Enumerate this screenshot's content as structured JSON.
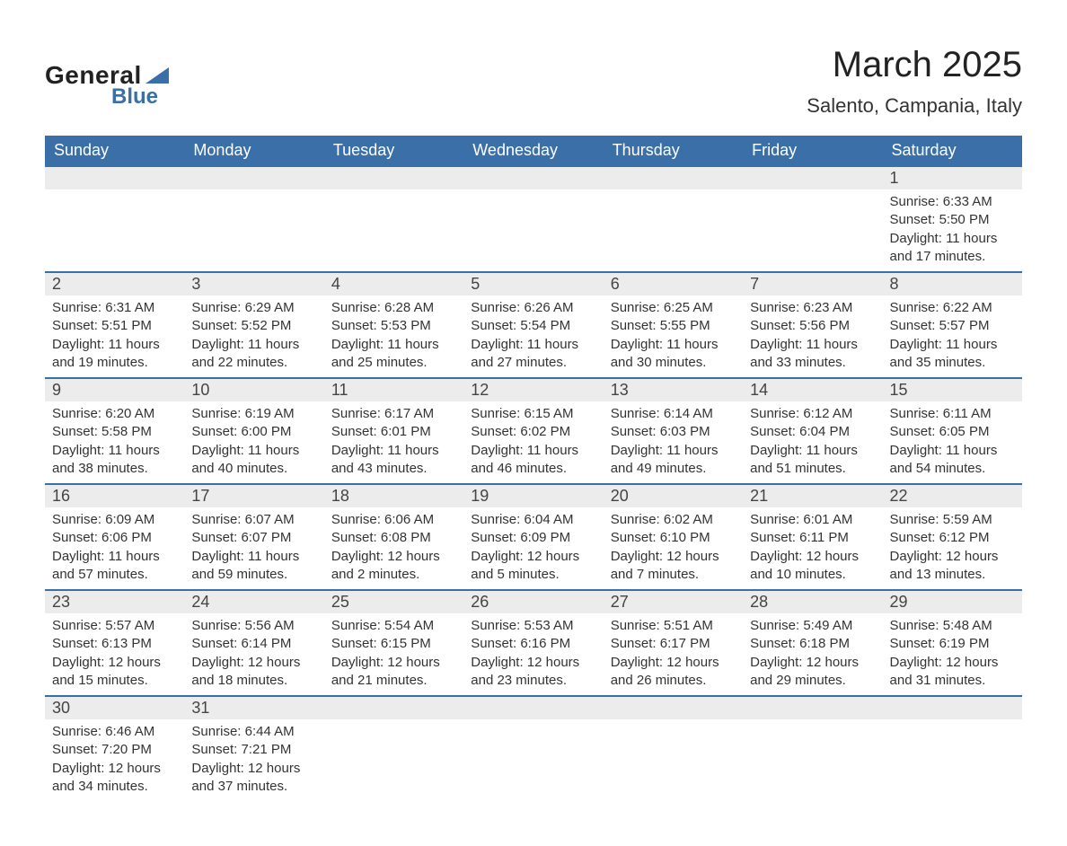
{
  "logo": {
    "general": "General",
    "blue": "Blue",
    "sail_color": "#3a6fa8"
  },
  "title": "March 2025",
  "location": "Salento, Campania, Italy",
  "colors": {
    "header_bg": "#3a6fa8",
    "header_text": "#ffffff",
    "daynum_bg": "#ececec",
    "row_border": "#3a6fa8",
    "body_text": "#333333"
  },
  "typography": {
    "title_fontsize": 40,
    "location_fontsize": 22,
    "header_fontsize": 18,
    "daynum_fontsize": 18,
    "body_fontsize": 15
  },
  "weekdays": [
    "Sunday",
    "Monday",
    "Tuesday",
    "Wednesday",
    "Thursday",
    "Friday",
    "Saturday"
  ],
  "leading_blanks": 6,
  "trailing_blanks": 5,
  "days": [
    {
      "n": 1,
      "sunrise": "6:33 AM",
      "sunset": "5:50 PM",
      "daylight": "11 hours and 17 minutes."
    },
    {
      "n": 2,
      "sunrise": "6:31 AM",
      "sunset": "5:51 PM",
      "daylight": "11 hours and 19 minutes."
    },
    {
      "n": 3,
      "sunrise": "6:29 AM",
      "sunset": "5:52 PM",
      "daylight": "11 hours and 22 minutes."
    },
    {
      "n": 4,
      "sunrise": "6:28 AM",
      "sunset": "5:53 PM",
      "daylight": "11 hours and 25 minutes."
    },
    {
      "n": 5,
      "sunrise": "6:26 AM",
      "sunset": "5:54 PM",
      "daylight": "11 hours and 27 minutes."
    },
    {
      "n": 6,
      "sunrise": "6:25 AM",
      "sunset": "5:55 PM",
      "daylight": "11 hours and 30 minutes."
    },
    {
      "n": 7,
      "sunrise": "6:23 AM",
      "sunset": "5:56 PM",
      "daylight": "11 hours and 33 minutes."
    },
    {
      "n": 8,
      "sunrise": "6:22 AM",
      "sunset": "5:57 PM",
      "daylight": "11 hours and 35 minutes."
    },
    {
      "n": 9,
      "sunrise": "6:20 AM",
      "sunset": "5:58 PM",
      "daylight": "11 hours and 38 minutes."
    },
    {
      "n": 10,
      "sunrise": "6:19 AM",
      "sunset": "6:00 PM",
      "daylight": "11 hours and 40 minutes."
    },
    {
      "n": 11,
      "sunrise": "6:17 AM",
      "sunset": "6:01 PM",
      "daylight": "11 hours and 43 minutes."
    },
    {
      "n": 12,
      "sunrise": "6:15 AM",
      "sunset": "6:02 PM",
      "daylight": "11 hours and 46 minutes."
    },
    {
      "n": 13,
      "sunrise": "6:14 AM",
      "sunset": "6:03 PM",
      "daylight": "11 hours and 49 minutes."
    },
    {
      "n": 14,
      "sunrise": "6:12 AM",
      "sunset": "6:04 PM",
      "daylight": "11 hours and 51 minutes."
    },
    {
      "n": 15,
      "sunrise": "6:11 AM",
      "sunset": "6:05 PM",
      "daylight": "11 hours and 54 minutes."
    },
    {
      "n": 16,
      "sunrise": "6:09 AM",
      "sunset": "6:06 PM",
      "daylight": "11 hours and 57 minutes."
    },
    {
      "n": 17,
      "sunrise": "6:07 AM",
      "sunset": "6:07 PM",
      "daylight": "11 hours and 59 minutes."
    },
    {
      "n": 18,
      "sunrise": "6:06 AM",
      "sunset": "6:08 PM",
      "daylight": "12 hours and 2 minutes."
    },
    {
      "n": 19,
      "sunrise": "6:04 AM",
      "sunset": "6:09 PM",
      "daylight": "12 hours and 5 minutes."
    },
    {
      "n": 20,
      "sunrise": "6:02 AM",
      "sunset": "6:10 PM",
      "daylight": "12 hours and 7 minutes."
    },
    {
      "n": 21,
      "sunrise": "6:01 AM",
      "sunset": "6:11 PM",
      "daylight": "12 hours and 10 minutes."
    },
    {
      "n": 22,
      "sunrise": "5:59 AM",
      "sunset": "6:12 PM",
      "daylight": "12 hours and 13 minutes."
    },
    {
      "n": 23,
      "sunrise": "5:57 AM",
      "sunset": "6:13 PM",
      "daylight": "12 hours and 15 minutes."
    },
    {
      "n": 24,
      "sunrise": "5:56 AM",
      "sunset": "6:14 PM",
      "daylight": "12 hours and 18 minutes."
    },
    {
      "n": 25,
      "sunrise": "5:54 AM",
      "sunset": "6:15 PM",
      "daylight": "12 hours and 21 minutes."
    },
    {
      "n": 26,
      "sunrise": "5:53 AM",
      "sunset": "6:16 PM",
      "daylight": "12 hours and 23 minutes."
    },
    {
      "n": 27,
      "sunrise": "5:51 AM",
      "sunset": "6:17 PM",
      "daylight": "12 hours and 26 minutes."
    },
    {
      "n": 28,
      "sunrise": "5:49 AM",
      "sunset": "6:18 PM",
      "daylight": "12 hours and 29 minutes."
    },
    {
      "n": 29,
      "sunrise": "5:48 AM",
      "sunset": "6:19 PM",
      "daylight": "12 hours and 31 minutes."
    },
    {
      "n": 30,
      "sunrise": "6:46 AM",
      "sunset": "7:20 PM",
      "daylight": "12 hours and 34 minutes."
    },
    {
      "n": 31,
      "sunrise": "6:44 AM",
      "sunset": "7:21 PM",
      "daylight": "12 hours and 37 minutes."
    }
  ],
  "labels": {
    "sunrise": "Sunrise:",
    "sunset": "Sunset:",
    "daylight": "Daylight:"
  }
}
